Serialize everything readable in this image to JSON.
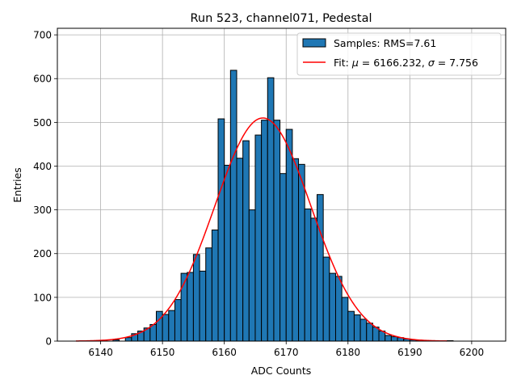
{
  "chart_data": {
    "type": "bar",
    "title": "Run 523, channel071, Pedestal",
    "xlabel": "ADC Counts",
    "ylabel": "Entries",
    "xlim": [
      6133,
      6205.5
    ],
    "ylim": [
      0,
      715
    ],
    "xticks": [
      6140,
      6150,
      6160,
      6170,
      6180,
      6190,
      6200
    ],
    "yticks": [
      0,
      100,
      200,
      300,
      400,
      500,
      600,
      700
    ],
    "grid": true,
    "legend_position": "top-right",
    "histogram": {
      "name": "Samples: RMS=7.61",
      "color": "#1f77b4",
      "bin_start": 6140,
      "bin_width": 1,
      "values": [
        1,
        0,
        3,
        0,
        8,
        17,
        23,
        30,
        38,
        68,
        61,
        70,
        95,
        155,
        157,
        198,
        160,
        213,
        254,
        508,
        402,
        619,
        418,
        458,
        300,
        471,
        505,
        602,
        505,
        383,
        484,
        417,
        404,
        302,
        281,
        335,
        192,
        155,
        148,
        100,
        68,
        60,
        50,
        41,
        32,
        23,
        13,
        10,
        8,
        5,
        3,
        2,
        1,
        1,
        0,
        0,
        1
      ]
    },
    "fit": {
      "name": "Fit: μ = 6166.232, σ = 7.756",
      "color": "#ff0000",
      "mu": 6166.232,
      "sigma": 7.756,
      "amplitude": 510,
      "x_range": [
        6136,
        6196
      ]
    }
  },
  "legend": {
    "hist_label_prefix": "Samples: RMS=7.61",
    "fit_label_plain": "Fit: ",
    "fit_mu_symbol": "μ",
    "fit_mu_value": " = 6166.232, ",
    "fit_sigma_symbol": "σ",
    "fit_sigma_value": " = 7.756"
  }
}
